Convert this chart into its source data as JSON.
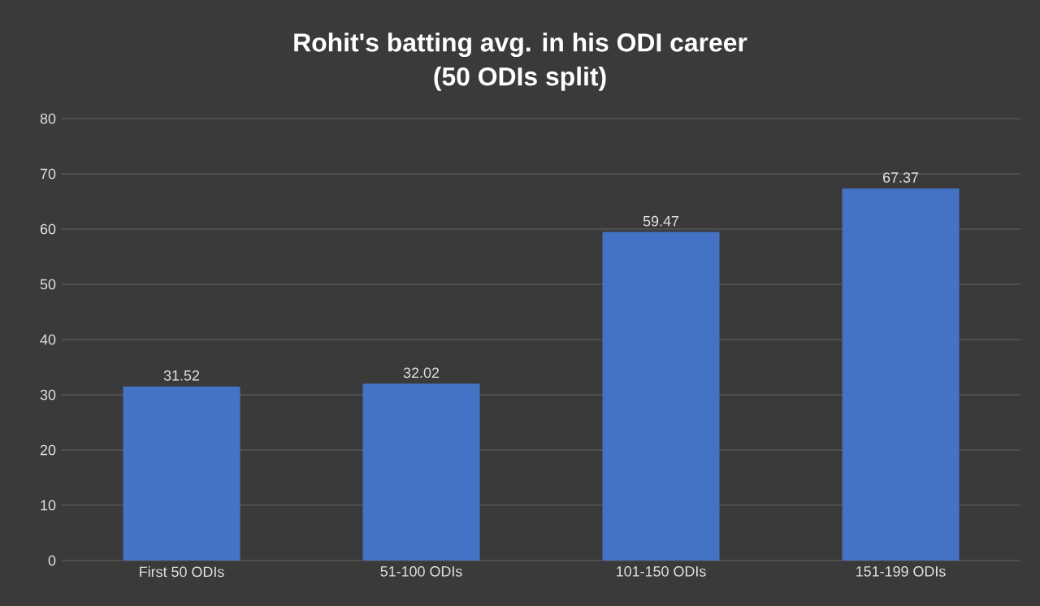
{
  "chart_data": {
    "type": "bar",
    "title": "Rohit's batting avg. in his ODI career\n(50 ODIs split)",
    "categories": [
      "First 50 ODIs",
      "51-100 ODIs",
      "101-150 ODIs",
      "151-199 ODIs"
    ],
    "values": [
      31.52,
      32.02,
      59.47,
      67.37
    ],
    "color": "#4472c4",
    "ylim": [
      0,
      80
    ],
    "yticks": [
      0,
      10,
      20,
      30,
      40,
      50,
      60,
      70,
      80
    ],
    "grid": "y",
    "data_labels": true
  }
}
